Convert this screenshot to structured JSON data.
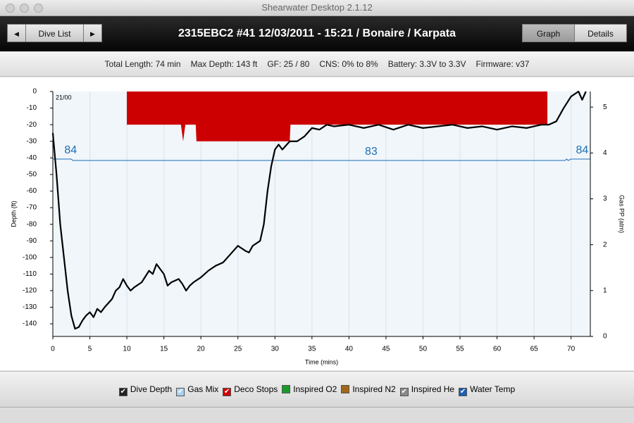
{
  "window": {
    "title": "Shearwater Desktop 2.1.12"
  },
  "toolbar": {
    "prev": "◀",
    "dive_list": "Dive List",
    "next": "▶",
    "dive_title": "2315EBC2 #41 12/03/2011 - 15:21  / Bonaire / Karpata",
    "tabs": [
      "Graph",
      "Details"
    ]
  },
  "summary": [
    "Total Length: 74 min",
    "Max Depth: 143 ft",
    "GF: 25 / 80",
    "CNS: 0% to 8%",
    "Battery: 3.3V to 3.3V",
    "Firmware: v37"
  ],
  "chart_data": {
    "type": "dive-profile",
    "corner_label": "21/00",
    "xlabel": "Time (mins)",
    "ylabel": "Depth (ft)",
    "y2label": "Gas PP (atm)",
    "xlim": [
      0,
      72.6
    ],
    "ylim": [
      -147.6,
      0
    ],
    "y2lim": [
      0,
      5.34
    ],
    "xticks": [
      0,
      5,
      10,
      15,
      20,
      25,
      30,
      35,
      40,
      45,
      50,
      55,
      60,
      65,
      70
    ],
    "yticks": [
      0,
      -10,
      -20,
      -30,
      -40,
      -50,
      -60,
      -70,
      -80,
      -90,
      -100,
      -110,
      -120,
      -130,
      -140
    ],
    "y2ticks": [
      0,
      1,
      2,
      3,
      4,
      5
    ],
    "grid": true,
    "series": [
      {
        "name": "Dive Depth",
        "color": "#000000",
        "x": [
          0,
          0.5,
          1,
          1.5,
          2,
          2.5,
          3,
          3.5,
          4,
          4.5,
          5,
          5.5,
          6,
          6.5,
          7,
          8,
          8.5,
          9,
          9.5,
          10,
          10.5,
          11,
          12,
          13,
          13.5,
          14,
          15,
          15.5,
          16,
          17,
          17.5,
          18,
          18.5,
          19,
          20,
          21,
          22,
          23,
          24,
          25,
          26,
          26.5,
          27,
          28,
          28.5,
          29,
          29.5,
          30,
          30.5,
          31,
          32,
          33,
          34,
          35,
          36,
          37,
          38,
          40,
          42,
          44,
          46,
          48,
          50,
          52,
          54,
          56,
          58,
          60,
          62,
          64,
          66,
          67,
          68,
          69,
          70,
          71,
          71.5,
          72
        ],
        "values": [
          -25,
          -50,
          -80,
          -100,
          -120,
          -135,
          -143,
          -142,
          -138,
          -135,
          -133,
          -136,
          -131,
          -133,
          -130,
          -125,
          -120,
          -118,
          -113,
          -117,
          -120,
          -118,
          -115,
          -108,
          -110,
          -104,
          -110,
          -117,
          -115,
          -113,
          -116,
          -120,
          -117,
          -115,
          -112,
          -108,
          -105,
          -103,
          -98,
          -93,
          -96,
          -97,
          -93,
          -90,
          -80,
          -60,
          -45,
          -35,
          -32,
          -35,
          -30,
          -30,
          -27,
          -22,
          -23,
          -20,
          -21,
          -20,
          -22,
          -20,
          -23,
          -20,
          -22,
          -21,
          -20,
          -22,
          -21,
          -23,
          -21,
          -22,
          -20,
          -20,
          -18,
          -10,
          -3,
          0,
          -5,
          0
        ]
      },
      {
        "name": "Deco Stops",
        "color": "#cc0000",
        "x": [
          10,
          17.3,
          17.6,
          17.9,
          19.3,
          19.4,
          32,
          32.1,
          66.8
        ],
        "values": [
          -20,
          -20,
          -30,
          -20,
          -20,
          -30,
          -30,
          -20,
          -20
        ]
      },
      {
        "name": "Water Temp",
        "color": "#1a6fb3",
        "x": [
          0,
          2.5,
          2.7,
          69.2,
          69.4,
          69.6,
          70,
          72.6
        ],
        "values": [
          84,
          84,
          83,
          83,
          84,
          83,
          84,
          84
        ],
        "labels": [
          {
            "x": 2.4,
            "value": 84
          },
          {
            "x": 43,
            "value": 83
          },
          {
            "x": 71.5,
            "value": 84
          }
        ]
      }
    ]
  },
  "legend": [
    {
      "name": "Dive Depth",
      "color": "#222222",
      "checked": true
    },
    {
      "name": "Gas Mix",
      "color": "#a9d2f0",
      "checked": true
    },
    {
      "name": "Deco Stops",
      "color": "#cc0000",
      "checked": true
    },
    {
      "name": "Inspired O2",
      "color": "#1a9a2a",
      "checked": false
    },
    {
      "name": "Inspired N2",
      "color": "#a0661a",
      "checked": false
    },
    {
      "name": "Inspired He",
      "color": "#8a8a8a",
      "checked": true
    },
    {
      "name": "Water Temp",
      "color": "#1a5fb3",
      "checked": true
    }
  ]
}
